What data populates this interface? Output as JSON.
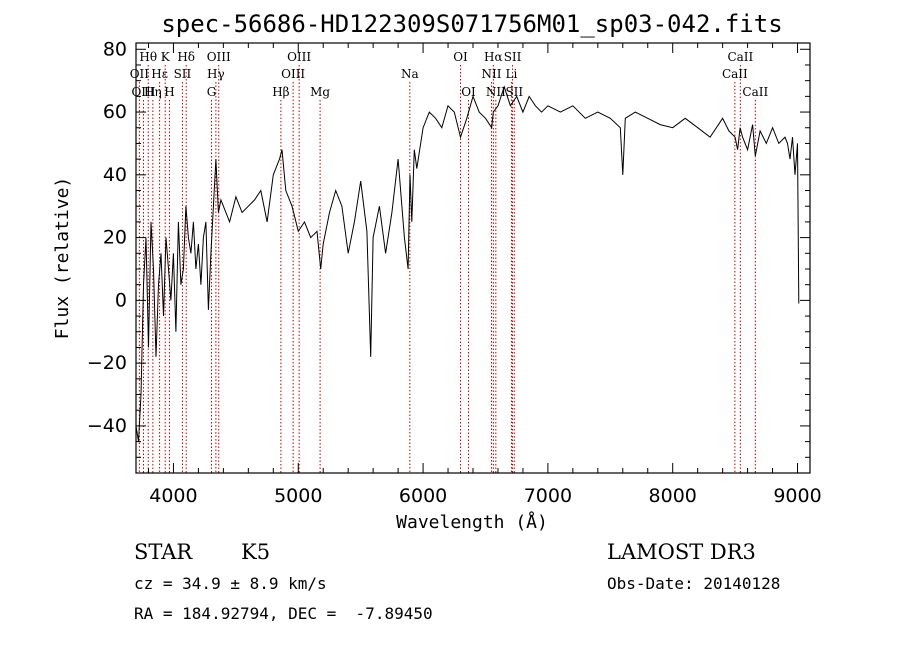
{
  "chart_data": {
    "type": "line",
    "title": "spec-56686-HD122309S071756M01_sp03-042.fits",
    "xlabel": "Wavelength (Å)",
    "ylabel": "Flux (relative)",
    "xlim": [
      3700,
      9100
    ],
    "ylim": [
      -55,
      82
    ],
    "x_ticks": [
      4000,
      5000,
      6000,
      7000,
      8000,
      9000
    ],
    "y_ticks": [
      -40,
      -20,
      0,
      20,
      40,
      60,
      80
    ],
    "grid": false,
    "series": [
      {
        "x": [
          3700,
          3720,
          3740,
          3760,
          3780,
          3800,
          3820,
          3840,
          3860,
          3880,
          3900,
          3920,
          3940,
          3960,
          3980,
          4000,
          4020,
          4040,
          4060,
          4080,
          4100,
          4120,
          4140,
          4160,
          4180,
          4200,
          4220,
          4240,
          4260,
          4280,
          4300,
          4320,
          4340,
          4360,
          4380,
          4400,
          4450,
          4500,
          4550,
          4600,
          4650,
          4700,
          4750,
          4800,
          4850,
          4870,
          4900,
          4950,
          5000,
          5050,
          5100,
          5150,
          5180,
          5200,
          5250,
          5300,
          5350,
          5400,
          5450,
          5500,
          5550,
          5580,
          5600,
          5650,
          5700,
          5750,
          5800,
          5850,
          5880,
          5895,
          5910,
          5930,
          5950,
          6000,
          6050,
          6100,
          6150,
          6200,
          6250,
          6300,
          6350,
          6400,
          6450,
          6500,
          6550,
          6563,
          6600,
          6650,
          6700,
          6750,
          6800,
          6850,
          6900,
          6950,
          7000,
          7100,
          7200,
          7300,
          7400,
          7500,
          7580,
          7600,
          7620,
          7700,
          7800,
          7900,
          8000,
          8100,
          8200,
          8300,
          8400,
          8450,
          8500,
          8520,
          8540,
          8560,
          8600,
          8640,
          8662,
          8700,
          8750,
          8800,
          8850,
          8900,
          8920,
          8940,
          8960,
          8980,
          9000,
          9010
        ],
        "y": [
          -40,
          -45,
          -30,
          5,
          20,
          -15,
          25,
          10,
          -18,
          5,
          15,
          -5,
          20,
          10,
          0,
          15,
          -10,
          25,
          5,
          10,
          30,
          20,
          15,
          25,
          10,
          18,
          5,
          20,
          25,
          -3,
          15,
          30,
          45,
          28,
          32,
          30,
          25,
          33,
          28,
          30,
          32,
          35,
          25,
          40,
          45,
          48,
          35,
          30,
          22,
          25,
          20,
          22,
          10,
          18,
          28,
          35,
          30,
          15,
          25,
          38,
          22,
          -18,
          20,
          30,
          15,
          28,
          45,
          20,
          10,
          40,
          25,
          48,
          42,
          55,
          60,
          58,
          55,
          62,
          60,
          52,
          58,
          65,
          60,
          58,
          55,
          60,
          62,
          68,
          62,
          65,
          60,
          65,
          62,
          60,
          62,
          60,
          62,
          58,
          60,
          58,
          55,
          40,
          58,
          60,
          58,
          56,
          55,
          58,
          55,
          52,
          58,
          54,
          52,
          48,
          55,
          52,
          48,
          56,
          46,
          54,
          50,
          55,
          50,
          52,
          50,
          45,
          52,
          40,
          50,
          -1
        ]
      }
    ],
    "line_markers": [
      {
        "label": "Hθ",
        "x": 3798,
        "row": 0
      },
      {
        "label": "OII",
        "x": 3727,
        "row": 1
      },
      {
        "label": "OIII",
        "x": 3760,
        "row": 2
      },
      {
        "label": "Hη",
        "x": 3835,
        "row": 2
      },
      {
        "label": "K",
        "x": 3934,
        "row": 0
      },
      {
        "label": "Hε",
        "x": 3889,
        "row": 1
      },
      {
        "label": "H",
        "x": 3968,
        "row": 2
      },
      {
        "label": "SII",
        "x": 4072,
        "row": 1
      },
      {
        "label": "Hδ",
        "x": 4102,
        "row": 0
      },
      {
        "label": "OIII",
        "x": 4363,
        "row": 0
      },
      {
        "label": "Hγ",
        "x": 4340,
        "row": 1
      },
      {
        "label": "G",
        "x": 4305,
        "row": 2
      },
      {
        "label": "OIII",
        "x": 5007,
        "row": 0
      },
      {
        "label": "OIII",
        "x": 4959,
        "row": 1
      },
      {
        "label": "Hβ",
        "x": 4861,
        "row": 2
      },
      {
        "label": "Mg",
        "x": 5175,
        "row": 2
      },
      {
        "label": "Na",
        "x": 5894,
        "row": 1
      },
      {
        "label": "OI",
        "x": 6300,
        "row": 0
      },
      {
        "label": "OI",
        "x": 6364,
        "row": 2
      },
      {
        "label": "Hα",
        "x": 6563,
        "row": 0
      },
      {
        "label": "NII",
        "x": 6548,
        "row": 1
      },
      {
        "label": "NII",
        "x": 6583,
        "row": 2
      },
      {
        "label": "SII",
        "x": 6717,
        "row": 0
      },
      {
        "label": "Li",
        "x": 6708,
        "row": 1
      },
      {
        "label": "SII",
        "x": 6731,
        "row": 2
      },
      {
        "label": "CaII",
        "x": 8542,
        "row": 0
      },
      {
        "label": "CaII",
        "x": 8498,
        "row": 1
      },
      {
        "label": "CaII",
        "x": 8662,
        "row": 2
      }
    ]
  },
  "info": {
    "object_class": "STAR",
    "subclass": "K5",
    "survey": "LAMOST DR3",
    "redshift_text": "cz = 34.9 ± 8.9 km/s",
    "obs_date_text": "Obs-Date: 20140128",
    "coords_text": "RA = 184.92794, DEC =  -7.89450"
  },
  "colors": {
    "spectrum": "#000000",
    "marker_line": "#c00000",
    "axes": "#000000",
    "background": "#ffffff"
  }
}
